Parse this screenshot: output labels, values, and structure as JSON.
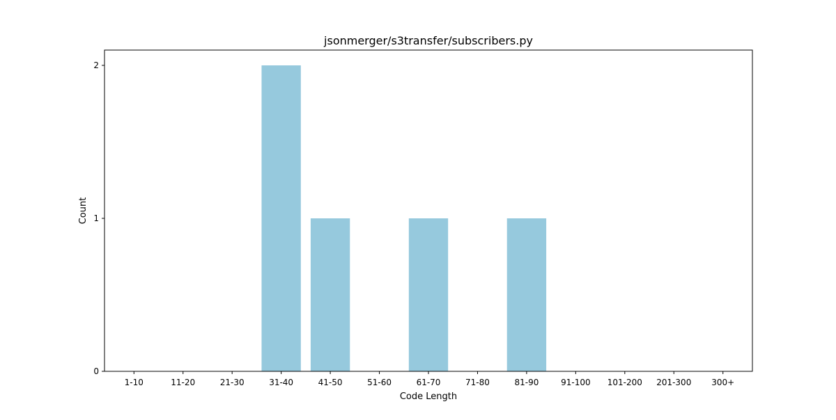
{
  "chart_data": {
    "type": "bar",
    "title": "jsonmerger/s3transfer/subscribers.py",
    "xlabel": "Code Length",
    "ylabel": "Count",
    "categories": [
      "1-10",
      "11-20",
      "21-30",
      "31-40",
      "41-50",
      "51-60",
      "61-70",
      "71-80",
      "81-90",
      "91-100",
      "101-200",
      "201-300",
      "300+"
    ],
    "values": [
      0,
      0,
      0,
      2,
      1,
      0,
      1,
      0,
      1,
      0,
      0,
      0,
      0
    ],
    "yticks": [
      0,
      1,
      2
    ],
    "ylim": [
      0,
      2.1
    ],
    "bar_color": "#96c9dd",
    "grid": false,
    "legend": "none"
  }
}
